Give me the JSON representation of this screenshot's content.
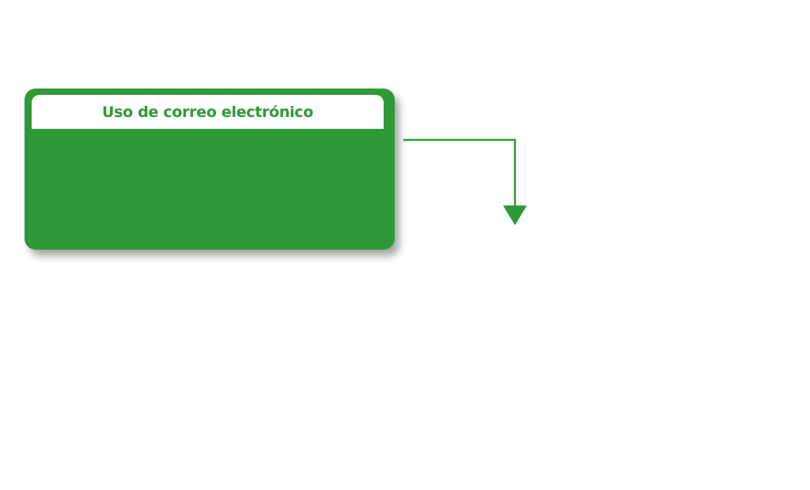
{
  "diagram": {
    "box": {
      "title": "Uso de correo electrónico"
    },
    "colors": {
      "accent": "#2e9a37",
      "header_bg": "#ffffff",
      "page_bg": "#ffffff"
    }
  }
}
